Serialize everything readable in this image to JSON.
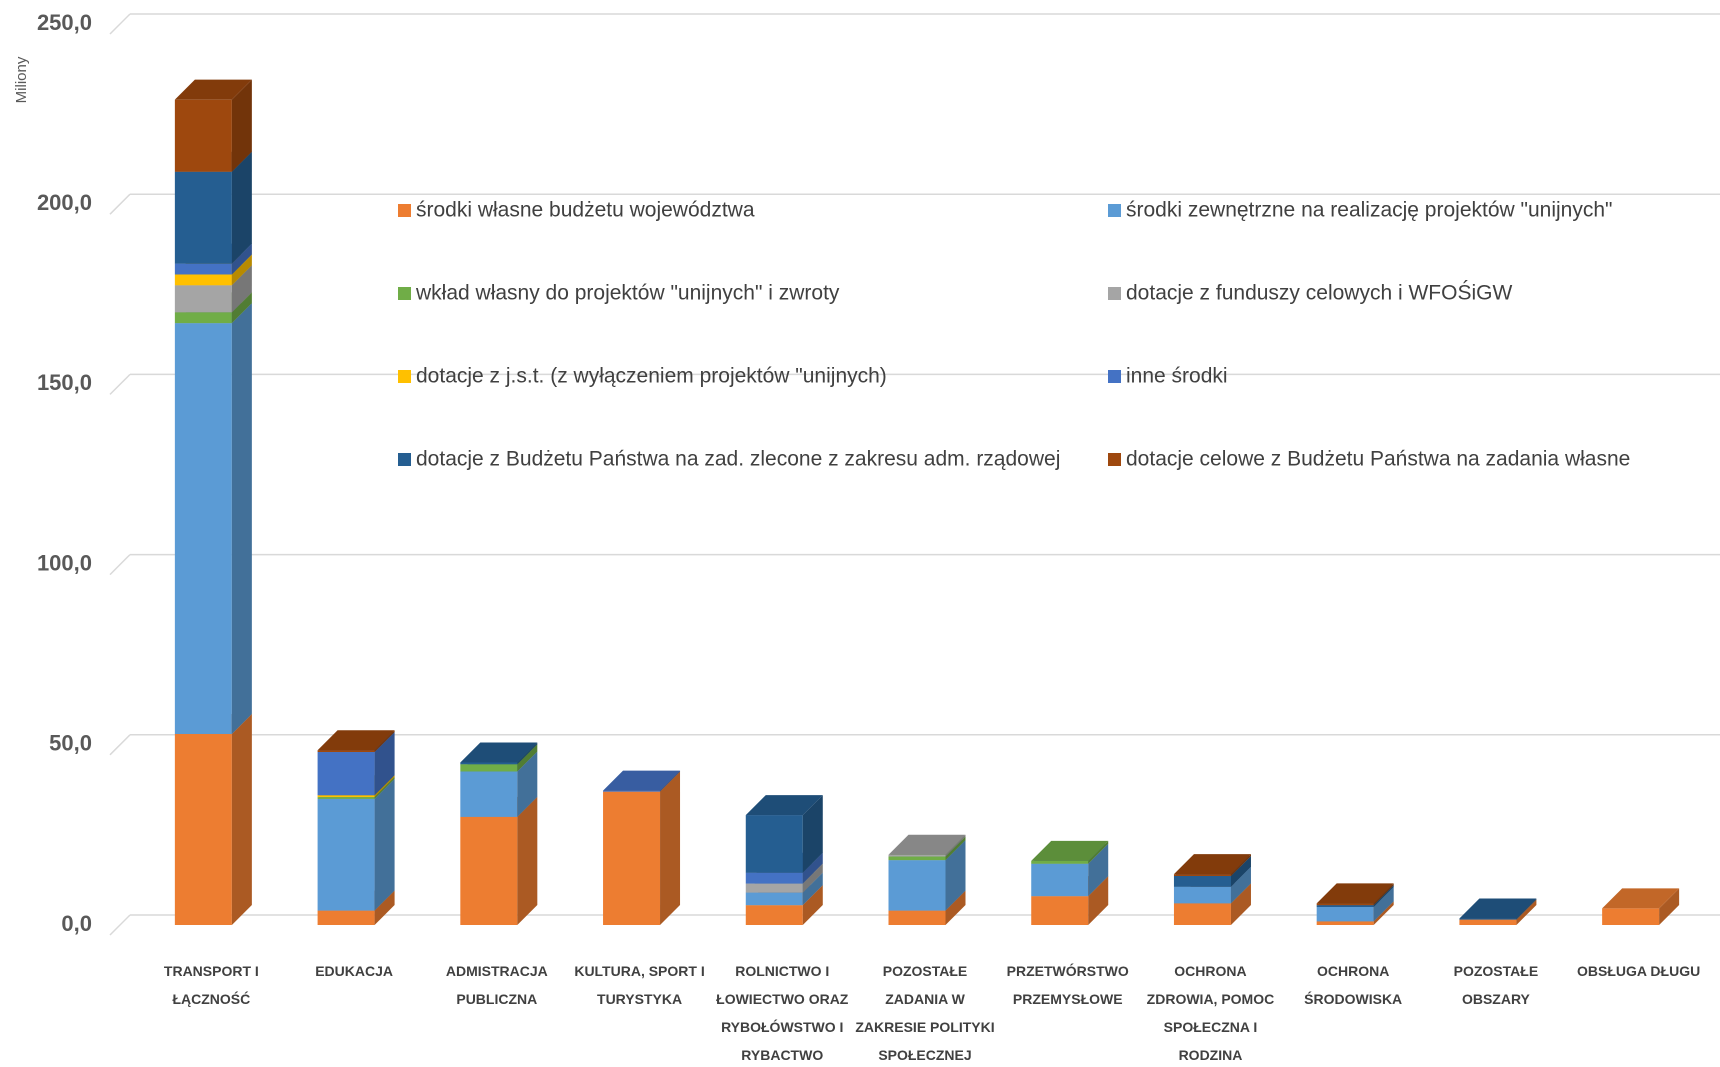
{
  "chart_data": {
    "type": "bar3d_stacked",
    "y_axis_label": "Miliony",
    "ylim": [
      0,
      250
    ],
    "yticks": [
      {
        "value": 0,
        "label": "0,0"
      },
      {
        "value": 50,
        "label": "50,0"
      },
      {
        "value": 100,
        "label": "100,0"
      },
      {
        "value": 150,
        "label": "150,0"
      },
      {
        "value": 200,
        "label": "200,0"
      },
      {
        "value": 250,
        "label": "250,0"
      }
    ],
    "grid": true,
    "categories": [
      "TRANSPORT I\nŁĄCZNOŚĆ",
      "EDUKACJA",
      "ADMISTRACJA\nPUBLICZNA",
      "KULTURA, SPORT I\nTURYSTYKA",
      "ROLNICTWO I\nŁOWIECTWO ORAZ\nRYBOŁÓWSTWO I\nRYBACTWO",
      "POZOSTAŁE\nZADANIA W\nZAKRESIE POLITYKI\nSPOŁECZNEJ",
      "PRZETWÓRSTWO\nPRZEMYSŁOWE",
      "OCHRONA\nZDROWIA, POMOC\nSPOŁECZNA I\nRODZINA",
      "OCHRONA\nŚRODOWISKA",
      "POZOSTAŁE\nOBSZARY",
      "OBSŁUGA DŁUGU"
    ],
    "series": [
      {
        "name": "środki własne budżetu  województwa",
        "color": "#ED7D31",
        "values": [
          53,
          4,
          30,
          37,
          5.5,
          4,
          8,
          6,
          1,
          1.5,
          4.6
        ]
      },
      {
        "name": "środki zewnętrzne na realizację projektów \"unijnych\"",
        "color": "#5B9BD5",
        "values": [
          114,
          31,
          12.6,
          0,
          3.5,
          14,
          9,
          4.6,
          4,
          0,
          0
        ]
      },
      {
        "name": "wkład własny do projektów \"unijnych\" i zwroty",
        "color": "#70AD47",
        "values": [
          3,
          0.5,
          2,
          0,
          0,
          1,
          0.8,
          0,
          0,
          0,
          0
        ]
      },
      {
        "name": "dotacje z funduszy celowych i WFOŚiGW",
        "color": "#A5A5A5",
        "values": [
          7.5,
          0,
          0,
          0,
          2.5,
          0.5,
          0,
          0,
          0,
          0,
          0
        ]
      },
      {
        "name": "dotacje z j.s.t. (z wyłączeniem projektów \"unijnych)",
        "color": "#FFC000",
        "values": [
          3,
          0.5,
          0,
          0,
          0,
          0,
          0,
          0,
          0,
          0,
          0
        ]
      },
      {
        "name": "inne środki",
        "color": "#4472C4",
        "values": [
          3,
          12,
          0,
          0.3,
          3,
          0,
          0,
          0,
          0,
          0,
          0
        ]
      },
      {
        "name": "dotacje z Budżetu Państwa na zad. zlecone z zakresu adm. rządowej",
        "color": "#255E91",
        "values": [
          25.5,
          0,
          0.5,
          0,
          16,
          0,
          0,
          3,
          0.5,
          0.3,
          0
        ]
      },
      {
        "name": "dotacje celowe z Budżetu Państwa na zadania własne",
        "color": "#9E480E",
        "values": [
          20,
          0.5,
          0,
          0,
          0,
          0,
          0,
          0.5,
          0.5,
          0,
          0
        ]
      }
    ]
  }
}
